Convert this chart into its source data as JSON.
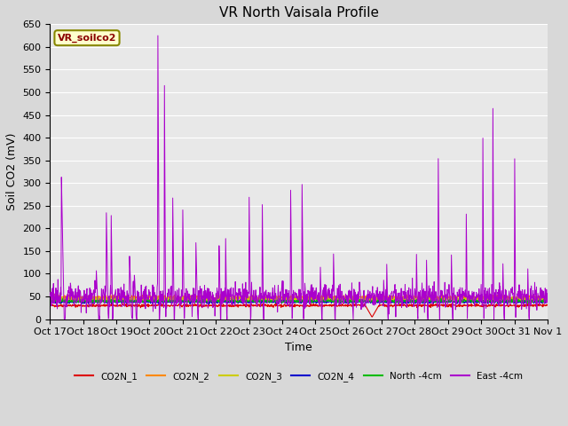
{
  "title": "VR North Vaisala Profile",
  "ylabel": "Soil CO2 (mV)",
  "xlabel": "Time",
  "annotation_label": "VR_soilco2",
  "ylim": [
    0,
    650
  ],
  "yticks": [
    0,
    50,
    100,
    150,
    200,
    250,
    300,
    350,
    400,
    450,
    500,
    550,
    600,
    650
  ],
  "xtick_labels": [
    "Oct 17",
    "Oct 18",
    "Oct 19",
    "Oct 20",
    "Oct 21",
    "Oct 22",
    "Oct 23",
    "Oct 24",
    "Oct 25",
    "Oct 26",
    "Oct 27",
    "Oct 28",
    "Oct 29",
    "Oct 30",
    "Oct 31",
    "Nov 1"
  ],
  "legend_labels": [
    "CO2N_1",
    "CO2N_2",
    "CO2N_3",
    "CO2N_4",
    "North -4cm",
    "East -4cm"
  ],
  "legend_colors": [
    "#dd0000",
    "#ff8800",
    "#cccc00",
    "#0000cc",
    "#00bb00",
    "#aa00cc"
  ],
  "fig_bg_color": "#d8d8d8",
  "plot_bg_color": "#e8e8e8",
  "grid_color": "#ffffff",
  "title_fontsize": 11,
  "axis_fontsize": 9,
  "tick_fontsize": 8,
  "figwidth": 6.4,
  "figheight": 4.8,
  "dpi": 100
}
